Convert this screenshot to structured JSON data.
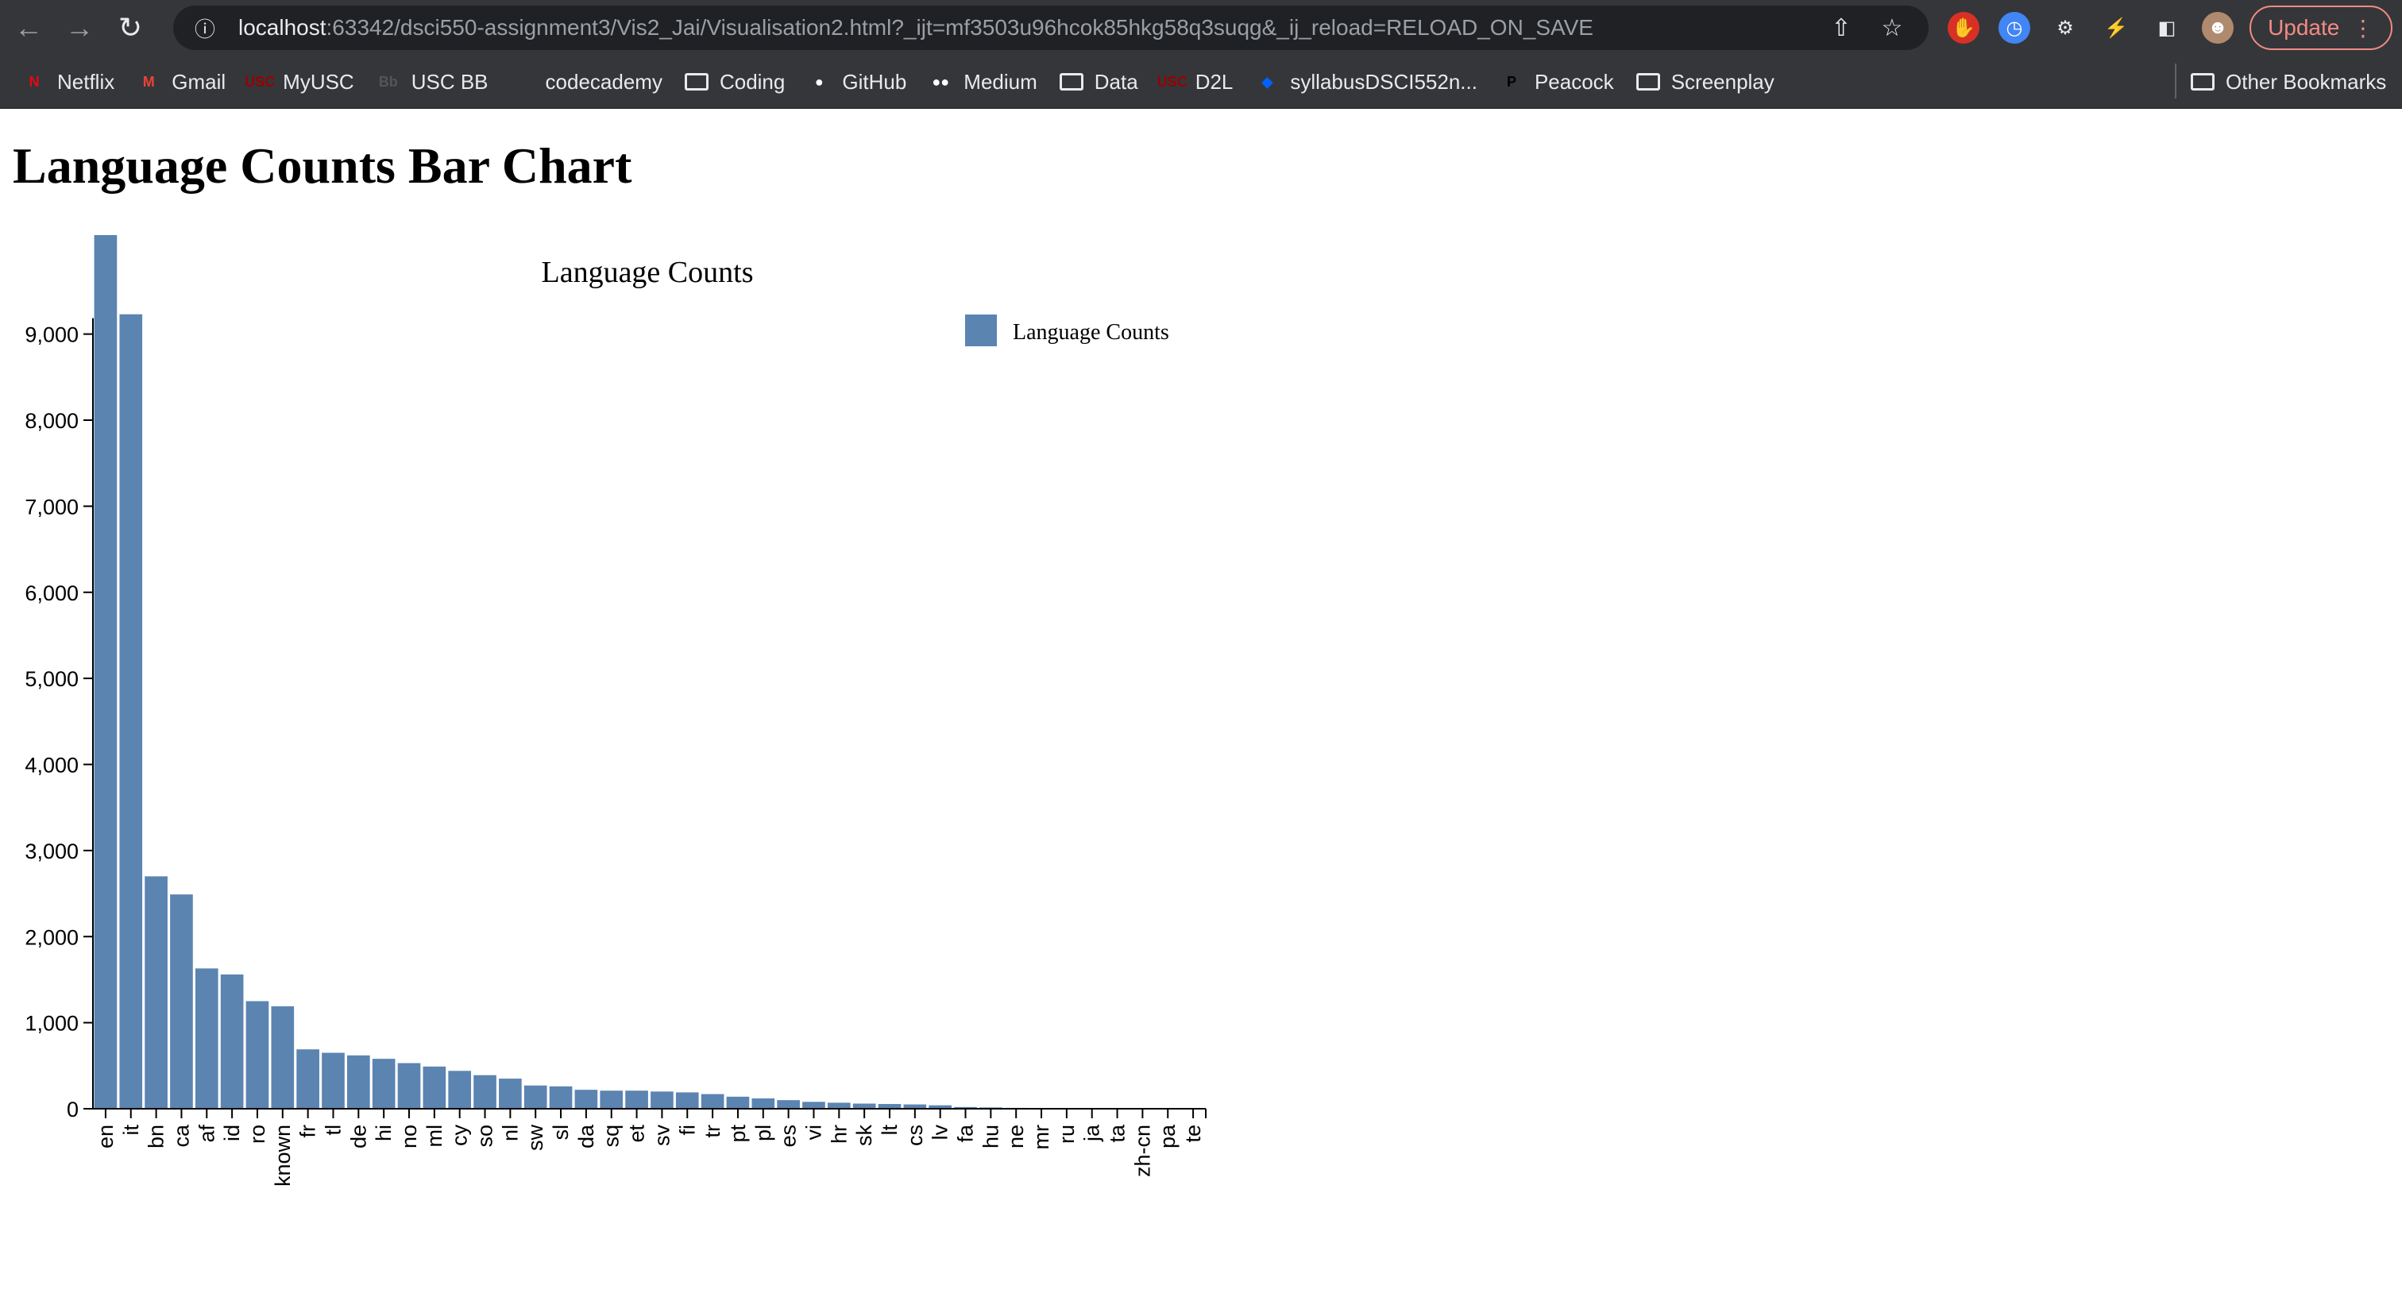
{
  "browser": {
    "url_host": "localhost",
    "url_rest": ":63342/dsci550-assignment3/Vis2_Jai/Visualisation2.html?_ijt=mf3503u96hcok85hkg58q3suqg&_ij_reload=RELOAD_ON_SAVE",
    "update_label": "Update"
  },
  "bookmarks": [
    {
      "label": "Netflix",
      "icon": "netflix-icon",
      "color": "#e50914",
      "glyph": "N"
    },
    {
      "label": "Gmail",
      "icon": "gmail-icon",
      "color": "#ea4335",
      "glyph": "M"
    },
    {
      "label": "MyUSC",
      "icon": "usc-icon",
      "color": "#990000",
      "glyph": "USC"
    },
    {
      "label": "USC BB",
      "icon": "blackboard-icon",
      "color": "#555555",
      "glyph": "Bb"
    },
    {
      "label": "codecademy",
      "icon": "codecademy-icon",
      "color": "#1f2a44",
      "glyph": ""
    },
    {
      "label": "Coding",
      "icon": "folder-icon",
      "folder": true
    },
    {
      "label": "GitHub",
      "icon": "github-icon",
      "color": "#ffffff",
      "glyph": "●"
    },
    {
      "label": "Medium",
      "icon": "medium-icon",
      "color": "#ffffff",
      "glyph": "●●"
    },
    {
      "label": "Data",
      "icon": "folder-icon",
      "folder": true
    },
    {
      "label": "D2L",
      "icon": "usc-icon",
      "color": "#990000",
      "glyph": "USC"
    },
    {
      "label": "syllabusDSCI552n...",
      "icon": "dropbox-icon",
      "color": "#0061fe",
      "glyph": "◆"
    },
    {
      "label": "Peacock",
      "icon": "peacock-icon",
      "color": "#000000",
      "glyph": "P"
    },
    {
      "label": "Screenplay",
      "icon": "folder-icon",
      "folder": true
    }
  ],
  "other_bookmarks_label": "Other Bookmarks",
  "page": {
    "heading": "Language Counts Bar Chart"
  },
  "chart_data": {
    "type": "bar",
    "title": "Language Counts",
    "legend": [
      "Language Counts"
    ],
    "legend_placement": "top-right",
    "bar_color": "#5b84b1",
    "ylim": [
      0,
      10150
    ],
    "yticks": [
      0,
      1000,
      2000,
      3000,
      4000,
      5000,
      6000,
      7000,
      8000,
      9000
    ],
    "ytick_labels": [
      "0",
      "1,000",
      "2,000",
      "3,000",
      "4,000",
      "5,000",
      "6,000",
      "7,000",
      "8,000",
      "9,000"
    ],
    "categories": [
      "en",
      "it",
      "bn",
      "ca",
      "af",
      "id",
      "ro",
      "known",
      "fr",
      "tl",
      "de",
      "hi",
      "no",
      "ml",
      "cy",
      "so",
      "nl",
      "sw",
      "sl",
      "da",
      "sq",
      "et",
      "sv",
      "fi",
      "tr",
      "pt",
      "pl",
      "es",
      "vi",
      "hr",
      "sk",
      "lt",
      "cs",
      "lv",
      "fa",
      "hu",
      "ne",
      "mr",
      "ru",
      "ja",
      "ta",
      "zh-cn",
      "pa",
      "te"
    ],
    "values": [
      10150,
      9230,
      2700,
      2490,
      1630,
      1560,
      1250,
      1190,
      690,
      650,
      620,
      580,
      530,
      490,
      440,
      390,
      350,
      270,
      260,
      220,
      210,
      210,
      200,
      190,
      170,
      140,
      120,
      100,
      80,
      70,
      60,
      55,
      50,
      40,
      20,
      15,
      10,
      8,
      6,
      5,
      4,
      3,
      2,
      1
    ]
  }
}
